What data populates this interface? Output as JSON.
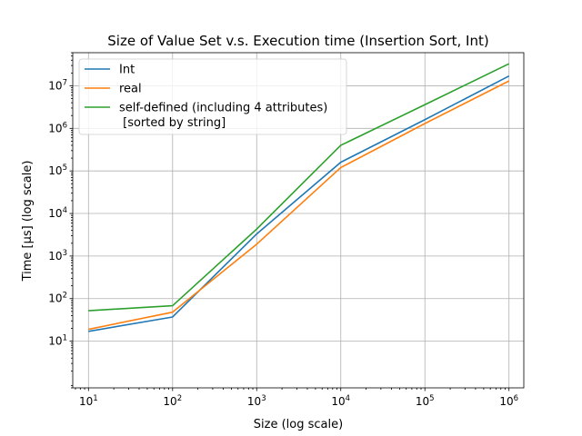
{
  "chart_data": {
    "type": "line",
    "title": "Size of Value Set v.s. Execution time (Insertion Sort, Int)",
    "xlabel": "Size (log scale)",
    "ylabel": "Time [μs] (log scale)",
    "xscale": "log",
    "yscale": "log",
    "xlim": [
      6.5,
      1500000
    ],
    "ylim": [
      0.8,
      60000000
    ],
    "x": [
      10,
      100,
      1000,
      10000,
      100000,
      1000000
    ],
    "x_ticks": [
      10,
      100,
      1000,
      10000,
      100000,
      1000000
    ],
    "y_ticks": [
      10,
      100,
      1000,
      10000,
      100000,
      1000000,
      10000000
    ],
    "tick_base": "10",
    "grid": true,
    "legend_position": "upper-left",
    "series": [
      {
        "name": "Int",
        "color": "#1f77b4",
        "values": [
          17,
          37,
          3300,
          160000,
          1600000,
          17000000
        ]
      },
      {
        "name": "real",
        "color": "#ff7f0e",
        "values": [
          19,
          48,
          1900,
          120000,
          1300000,
          13000000
        ]
      },
      {
        "name": "self-defined (including 4 attributes)",
        "name_line2": " [sorted by string]",
        "color": "#2ca02c",
        "values": [
          52,
          68,
          4300,
          400000,
          3600000,
          33000000
        ]
      }
    ]
  }
}
